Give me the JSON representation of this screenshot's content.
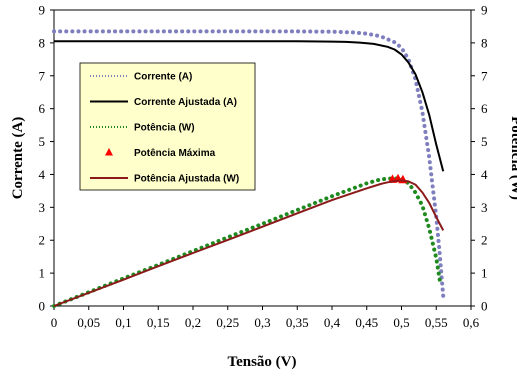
{
  "chart_data": {
    "type": "line",
    "xlabel": "Tensão (V)",
    "ylabel": "Corrente (A)",
    "y2label": "Potência (W)",
    "xlim": [
      0,
      0.6
    ],
    "ylim": [
      0,
      9
    ],
    "y2lim": [
      0,
      9
    ],
    "x_ticks": [
      "0",
      "0,05",
      "0,1",
      "0,15",
      "0,2",
      "0,25",
      "0,3",
      "0,35",
      "0,4",
      "0,45",
      "0,5",
      "0,55",
      "0,6"
    ],
    "y_ticks": [
      "0",
      "1",
      "2",
      "3",
      "4",
      "5",
      "6",
      "7",
      "8",
      "9"
    ],
    "y2_ticks": [
      "0",
      "1",
      "2",
      "3",
      "4",
      "5",
      "6",
      "7",
      "8",
      "9"
    ],
    "grid": false,
    "legend_position": "upper-left",
    "colors": {
      "corrente": "#7f7fbf",
      "corrente_ajustada": "#000000",
      "potencia": "#1f8a1f",
      "potencia_maxima": "#ff0000",
      "potencia_ajustada": "#8b1a1a",
      "legend_bg": "#ffffcc"
    },
    "series": [
      {
        "name": "Corrente (A)",
        "style": "dotted",
        "x": [
          0,
          0.05,
          0.1,
          0.15,
          0.2,
          0.25,
          0.3,
          0.35,
          0.4,
          0.43,
          0.45,
          0.47,
          0.49,
          0.5,
          0.51,
          0.52,
          0.53,
          0.54,
          0.55,
          0.555,
          0.56
        ],
        "y": [
          8.35,
          8.35,
          8.35,
          8.35,
          8.35,
          8.35,
          8.35,
          8.35,
          8.34,
          8.32,
          8.28,
          8.2,
          8.02,
          7.85,
          7.5,
          6.9,
          5.9,
          4.5,
          2.7,
          1.6,
          0.3
        ]
      },
      {
        "name": "Corrente Ajustada (A)",
        "style": "solid",
        "x": [
          0,
          0.05,
          0.1,
          0.15,
          0.2,
          0.25,
          0.3,
          0.35,
          0.4,
          0.42,
          0.44,
          0.46,
          0.48,
          0.49,
          0.5,
          0.51,
          0.52,
          0.53,
          0.54,
          0.55,
          0.56
        ],
        "y": [
          8.05,
          8.05,
          8.05,
          8.05,
          8.05,
          8.05,
          8.05,
          8.05,
          8.04,
          8.03,
          8.01,
          7.97,
          7.88,
          7.8,
          7.65,
          7.4,
          7.05,
          6.5,
          5.8,
          4.9,
          4.1
        ]
      },
      {
        "name": "Potência (W)",
        "style": "dotted",
        "x": [
          0,
          0.05,
          0.1,
          0.15,
          0.2,
          0.25,
          0.3,
          0.35,
          0.4,
          0.45,
          0.47,
          0.48,
          0.49,
          0.5,
          0.51,
          0.52,
          0.53,
          0.54,
          0.55,
          0.555
        ],
        "y": [
          0,
          0.42,
          0.84,
          1.25,
          1.67,
          2.09,
          2.5,
          2.92,
          3.34,
          3.73,
          3.85,
          3.87,
          3.88,
          3.86,
          3.73,
          3.45,
          3.05,
          2.35,
          1.45,
          0.8
        ]
      },
      {
        "name": "Potência Máxima",
        "style": "markers",
        "x": [
          0.487,
          0.495,
          0.502
        ],
        "y": [
          3.85,
          3.87,
          3.84
        ]
      },
      {
        "name": "Potência Ajustada (W)",
        "style": "solid",
        "x": [
          0,
          0.05,
          0.1,
          0.15,
          0.2,
          0.25,
          0.3,
          0.35,
          0.4,
          0.45,
          0.47,
          0.48,
          0.49,
          0.5,
          0.51,
          0.52,
          0.53,
          0.54,
          0.55,
          0.56
        ],
        "y": [
          0,
          0.4,
          0.8,
          1.21,
          1.61,
          2.01,
          2.41,
          2.82,
          3.22,
          3.58,
          3.71,
          3.76,
          3.8,
          3.82,
          3.79,
          3.69,
          3.45,
          3.13,
          2.7,
          2.3
        ]
      }
    ]
  }
}
